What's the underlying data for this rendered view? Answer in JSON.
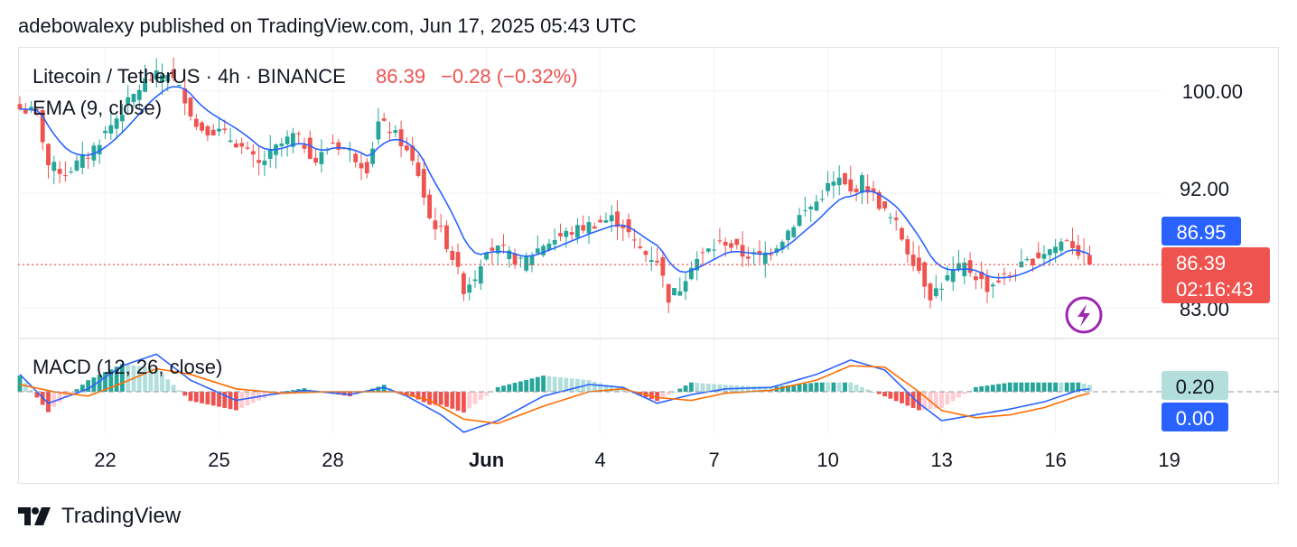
{
  "header": {
    "publisher_line": "adebowalexy published on TradingView.com, Jun 17, 2025 05:43 UTC"
  },
  "legend": {
    "symbol": "Litecoin / TetherUS · 4h · BINANCE",
    "last": "86.39",
    "change": "−0.28 (−0.32%)",
    "ema_label": "EMA (9, close)",
    "macd_label": "MACD (12, 26, close)"
  },
  "price_axis": {
    "ticks": [
      "100.00",
      "92.00",
      "83.00"
    ],
    "ema_badge": "86.95",
    "last_badge": "86.39",
    "countdown": "02:16:43"
  },
  "macd_axis": {
    "badge_hist": "0.20",
    "badge_zero": "0.00"
  },
  "footer": {
    "brand": "TradingView"
  },
  "colors": {
    "up": "#26a69a",
    "down": "#ef5350",
    "ema": "#2962ff",
    "macd": "#2962ff",
    "signal": "#ff6d00",
    "hist_up_strong": "#26a69a",
    "hist_up_weak": "#b2dfdb",
    "hist_down_strong": "#ef5350",
    "hist_down_weak": "#ffcdd2",
    "lightning": "#9c27b0"
  },
  "chart_data": {
    "type": "candlestick",
    "interval": "4h",
    "x_tick_labels": [
      "22",
      "25",
      "28",
      "Jun",
      "4",
      "7",
      "10",
      "13",
      "16",
      "19"
    ],
    "y_ticks": [
      100,
      92,
      83
    ],
    "ylim": [
      81.5,
      103.5
    ],
    "last_price": 86.39,
    "ema_value": 86.95,
    "price_anchors": [
      [
        0,
        98.6
      ],
      [
        3,
        98.3
      ],
      [
        5,
        94.2
      ],
      [
        8,
        93.6
      ],
      [
        12,
        95.0
      ],
      [
        18,
        98.5
      ],
      [
        22,
        100.8
      ],
      [
        26,
        101.5
      ],
      [
        29,
        99.5
      ],
      [
        31,
        97.2
      ],
      [
        35,
        96.8
      ],
      [
        38,
        96.0
      ],
      [
        42,
        94.2
      ],
      [
        45,
        95.5
      ],
      [
        48,
        96.5
      ],
      [
        50,
        95.8
      ],
      [
        52,
        94.5
      ],
      [
        55,
        96.0
      ],
      [
        58,
        95.2
      ],
      [
        61,
        94.0
      ],
      [
        63,
        97.5
      ],
      [
        65,
        97.0
      ],
      [
        67,
        96.0
      ],
      [
        70,
        93.5
      ],
      [
        72,
        90.0
      ],
      [
        74,
        89.0
      ],
      [
        76,
        87.0
      ],
      [
        78,
        84.5
      ],
      [
        80,
        85.5
      ],
      [
        82,
        87.8
      ],
      [
        85,
        87.4
      ],
      [
        88,
        86.5
      ],
      [
        92,
        88.0
      ],
      [
        96,
        88.8
      ],
      [
        100,
        89.5
      ],
      [
        104,
        90.0
      ],
      [
        106,
        89.5
      ],
      [
        108,
        88.0
      ],
      [
        110,
        87.2
      ],
      [
        112,
        86.8
      ],
      [
        114,
        83.8
      ],
      [
        116,
        84.6
      ],
      [
        118,
        86.5
      ],
      [
        121,
        87.5
      ],
      [
        124,
        88.2
      ],
      [
        127,
        87.2
      ],
      [
        130,
        87.0
      ],
      [
        132,
        87.5
      ],
      [
        134,
        88.5
      ],
      [
        137,
        90.2
      ],
      [
        140,
        91.3
      ],
      [
        142,
        92.5
      ],
      [
        144,
        93.0
      ],
      [
        146,
        92.0
      ],
      [
        148,
        93.0
      ],
      [
        150,
        91.8
      ],
      [
        152,
        90.5
      ],
      [
        154,
        89.5
      ],
      [
        156,
        87.5
      ],
      [
        158,
        86.0
      ],
      [
        160,
        84.0
      ],
      [
        162,
        84.8
      ],
      [
        164,
        85.8
      ],
      [
        166,
        86.3
      ],
      [
        168,
        85.5
      ],
      [
        170,
        84.6
      ],
      [
        172,
        85.2
      ],
      [
        174,
        85.6
      ],
      [
        176,
        86.2
      ],
      [
        178,
        86.8
      ],
      [
        180,
        87.4
      ],
      [
        182,
        87.8
      ],
      [
        184,
        88.5
      ],
      [
        186,
        87.4
      ],
      [
        188,
        86.39
      ]
    ],
    "macd_series": [
      {
        "name": "MACD",
        "anchors": [
          [
            0,
            1.2
          ],
          [
            5,
            -0.8
          ],
          [
            12,
            0.2
          ],
          [
            18,
            1.8
          ],
          [
            24,
            2.6
          ],
          [
            30,
            0.8
          ],
          [
            38,
            -0.6
          ],
          [
            44,
            -0.2
          ],
          [
            50,
            0.1
          ],
          [
            58,
            -0.2
          ],
          [
            64,
            0.3
          ],
          [
            68,
            -0.3
          ],
          [
            74,
            -1.6
          ],
          [
            78,
            -2.8
          ],
          [
            84,
            -2.0
          ],
          [
            92,
            -0.3
          ],
          [
            100,
            0.5
          ],
          [
            106,
            0.3
          ],
          [
            112,
            -0.8
          ],
          [
            118,
            -0.2
          ],
          [
            124,
            0.2
          ],
          [
            132,
            0.3
          ],
          [
            140,
            1.2
          ],
          [
            146,
            2.2
          ],
          [
            152,
            1.5
          ],
          [
            158,
            -0.8
          ],
          [
            162,
            -2.0
          ],
          [
            168,
            -1.6
          ],
          [
            174,
            -1.2
          ],
          [
            180,
            -0.7
          ],
          [
            186,
            0.1
          ],
          [
            188,
            0.2
          ]
        ]
      },
      {
        "name": "Signal",
        "anchors": [
          [
            0,
            0.5
          ],
          [
            6,
            0.0
          ],
          [
            12,
            -0.3
          ],
          [
            18,
            0.6
          ],
          [
            24,
            1.6
          ],
          [
            30,
            1.2
          ],
          [
            38,
            0.2
          ],
          [
            46,
            -0.1
          ],
          [
            54,
            0.0
          ],
          [
            60,
            0.0
          ],
          [
            66,
            0.0
          ],
          [
            72,
            -0.6
          ],
          [
            78,
            -1.9
          ],
          [
            84,
            -2.2
          ],
          [
            92,
            -1.0
          ],
          [
            100,
            0.0
          ],
          [
            106,
            0.2
          ],
          [
            112,
            -0.4
          ],
          [
            118,
            -0.6
          ],
          [
            124,
            -0.1
          ],
          [
            132,
            0.1
          ],
          [
            140,
            0.8
          ],
          [
            146,
            1.8
          ],
          [
            152,
            1.7
          ],
          [
            158,
            0.0
          ],
          [
            162,
            -1.3
          ],
          [
            168,
            -1.8
          ],
          [
            174,
            -1.6
          ],
          [
            180,
            -1.1
          ],
          [
            186,
            -0.3
          ],
          [
            188,
            -0.1
          ]
        ]
      }
    ]
  }
}
